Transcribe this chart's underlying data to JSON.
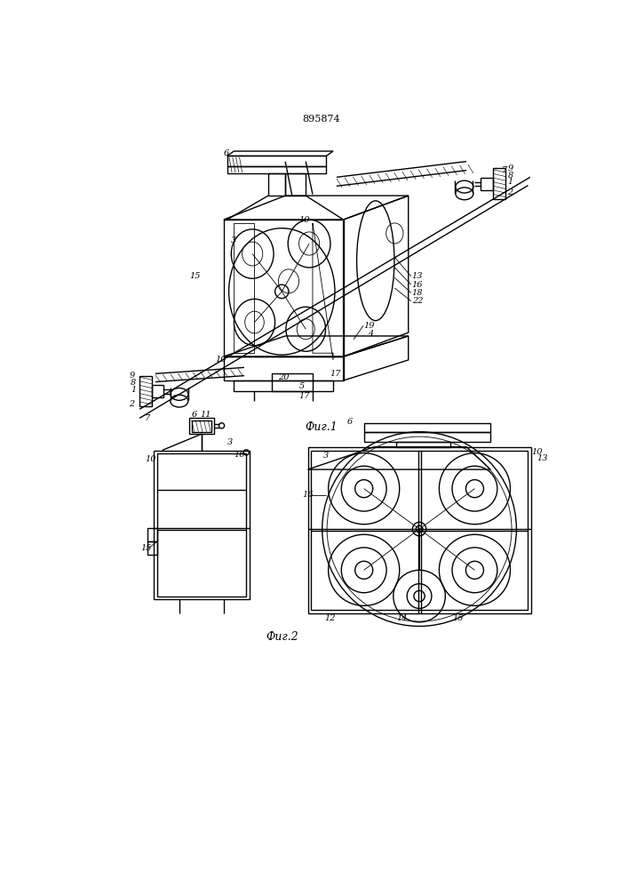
{
  "bg_color": "#ffffff",
  "line_color": "#000000",
  "lw": 1.0,
  "tlw": 0.6,
  "patent_num": "895874",
  "fig1_caption": "Фиг.1",
  "fig2_caption": "Фиг.2"
}
